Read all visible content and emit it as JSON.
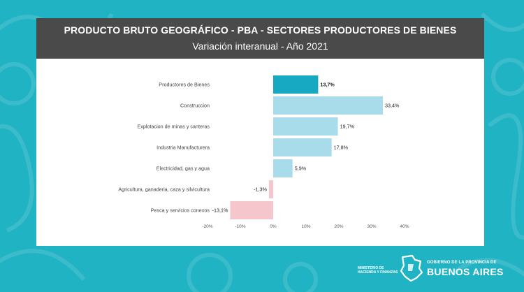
{
  "header": {
    "title": "PRODUCTO BRUTO GEOGRÁFICO - PBA - SECTORES PRODUCTORES DE BIENES",
    "subtitle": "Variación interanual - Año 2021"
  },
  "chart_data": {
    "type": "bar",
    "orientation": "horizontal",
    "categories": [
      "Productores de Bienes",
      "Construccion",
      "Explotacion de minas y canteras",
      "Industria Manufacturera",
      "Electricidad, gas y agua",
      "Agricultura, ganaderia, caza y silvicultura",
      "Pesca y servicios conexos"
    ],
    "values": [
      13.7,
      33.4,
      19.7,
      17.8,
      5.9,
      -1.3,
      -13.1
    ],
    "value_labels": [
      "13,7%",
      "33,4%",
      "19,7%",
      "17,8%",
      "5,9%",
      "-1,3%",
      "-13,1%"
    ],
    "xlim": [
      -20,
      40
    ],
    "xticks": [
      -20,
      -10,
      0,
      10,
      20,
      30,
      40
    ],
    "xtick_labels": [
      "-20%",
      "-10%",
      "0%",
      "10%",
      "20%",
      "30%",
      "40%"
    ],
    "colors": {
      "total": "#17a9c1",
      "positive": "#a9dceb",
      "negative": "#f5c6cb"
    },
    "grid": false,
    "legend": "none"
  },
  "footer": {
    "ministry": "MINISTERIO DE HACIENDA Y FINANZAS",
    "gov_top": "GOBIERNO DE LA PROVINCIA DE",
    "gov_main": "BUENOS AIRES"
  },
  "colors": {
    "background": "#1fb3c4",
    "header": "#4a4a4a"
  }
}
